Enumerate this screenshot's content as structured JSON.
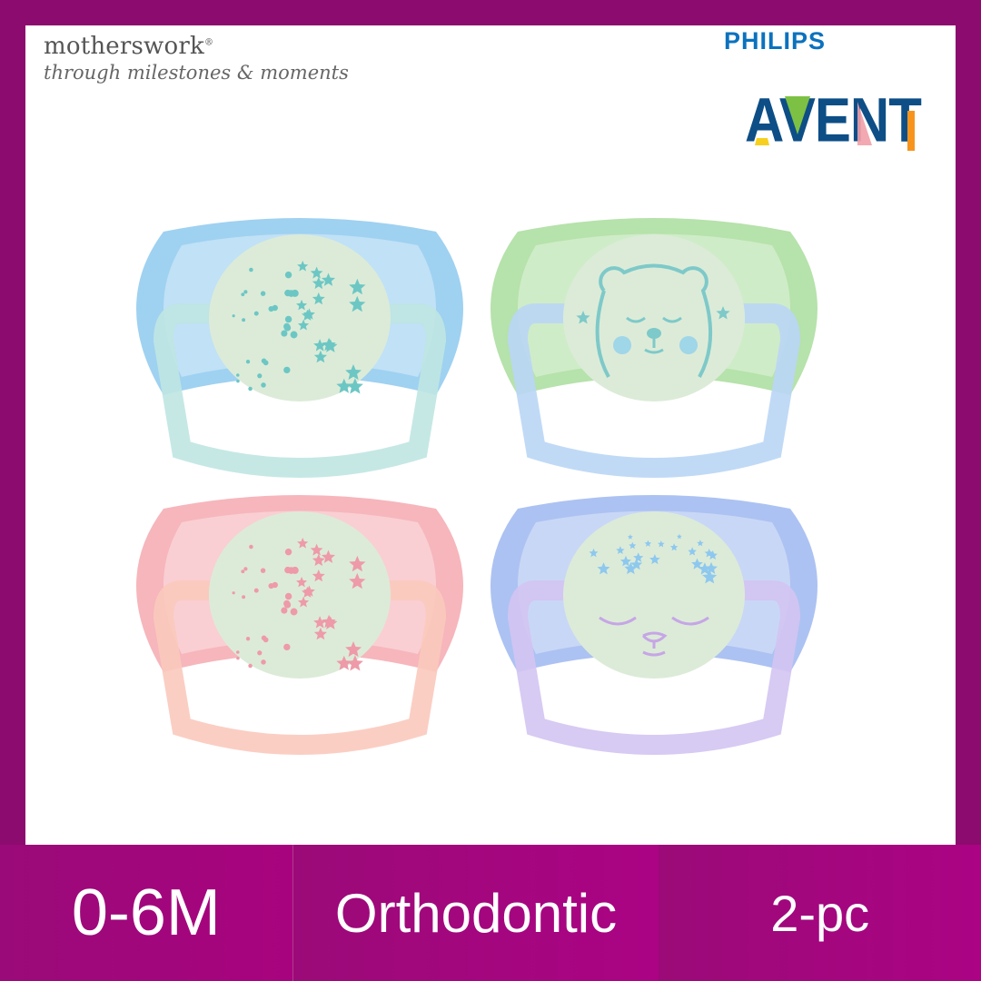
{
  "brand": {
    "retailer_name": "motherswork",
    "retailer_tagline": "through milestones & moments",
    "maker": "PHILIPS",
    "product_line": "AVENT"
  },
  "features": [
    {
      "label": "0-6M"
    },
    {
      "label": "Orthodontic"
    },
    {
      "label": "2-pc"
    }
  ],
  "colors": {
    "frame": "#8c0b6e",
    "bar": "#a8037f",
    "philips_blue": "#0b72be",
    "avent_navy": "#0d4e86"
  },
  "pacifiers": [
    {
      "shield": "#8ec9ee",
      "ring": "#bfe6e2",
      "pattern": "stars",
      "pattern_color": "#6cc7c4"
    },
    {
      "shield": "#a9dd9c",
      "ring": "#b9d6f5",
      "pattern": "bear",
      "pattern_color": "#7ec9c9"
    },
    {
      "shield": "#f4a9b0",
      "ring": "#fbc9bd",
      "pattern": "stars",
      "pattern_color": "#ee9aa8"
    },
    {
      "shield": "#9db7f0",
      "ring": "#d3c4f2",
      "pattern": "sleepy-face",
      "pattern_color": "#8ec8ee"
    }
  ]
}
